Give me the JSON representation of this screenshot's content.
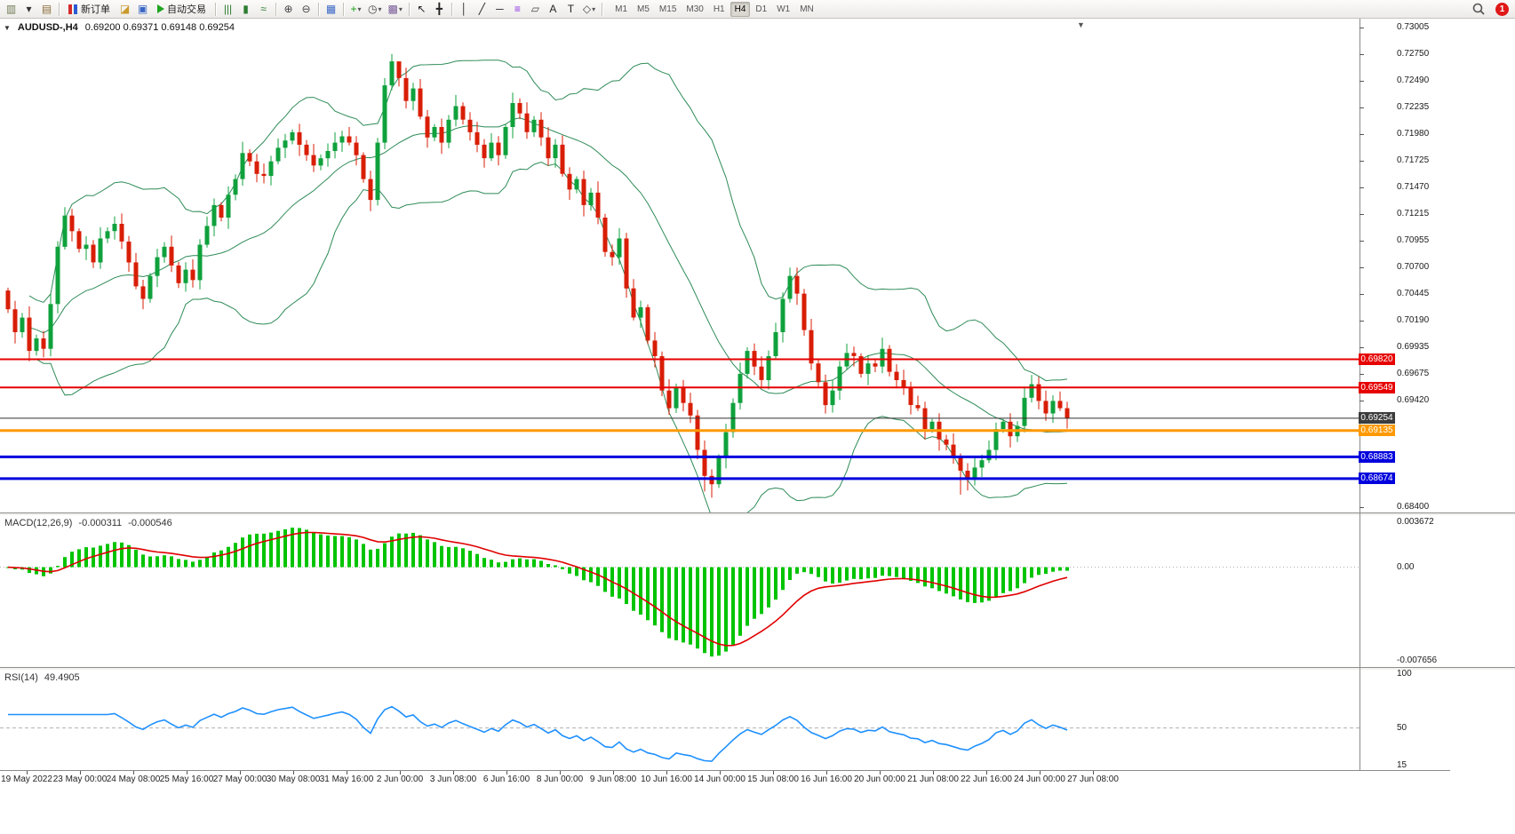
{
  "toolbar": {
    "items": [
      {
        "type": "icon",
        "name": "new-chart-button",
        "glyph": "▥",
        "color": "#6d7a52"
      },
      {
        "type": "icon",
        "name": "new-chart-dropdown-button",
        "glyph": "▾",
        "color": "#333"
      },
      {
        "type": "icon",
        "name": "profiles-button",
        "glyph": "▤",
        "color": "#8a6d3b"
      },
      {
        "type": "sep"
      },
      {
        "type": "button",
        "name": "new-order-button",
        "icon": "order",
        "label": "新订单"
      },
      {
        "type": "icon",
        "name": "market-watch-button",
        "glyph": "◪",
        "color": "#c99a2c"
      },
      {
        "type": "icon",
        "name": "navigator-button",
        "glyph": "▣",
        "color": "#3a66c6"
      },
      {
        "type": "button",
        "name": "autotrading-button",
        "icon": "play",
        "label": "自动交易"
      },
      {
        "type": "sep"
      },
      {
        "type": "icon",
        "name": "bar-chart-button",
        "glyph": "|||",
        "color": "#2e7d32"
      },
      {
        "type": "icon",
        "name": "candlestick-chart-button",
        "glyph": "▮",
        "color": "#2e7d32"
      },
      {
        "type": "icon",
        "name": "line-chart-button",
        "glyph": "≈",
        "color": "#2e7d32"
      },
      {
        "type": "sep"
      },
      {
        "type": "icon",
        "name": "zoom-in-button",
        "glyph": "⊕",
        "color": "#444"
      },
      {
        "type": "icon",
        "name": "zoom-out-button",
        "glyph": "⊖",
        "color": "#444"
      },
      {
        "type": "sep"
      },
      {
        "type": "icon",
        "name": "tile-windows-button",
        "glyph": "▦",
        "color": "#3a66c6"
      },
      {
        "type": "sep"
      },
      {
        "type": "icon",
        "name": "indicators-button",
        "glyph": "+",
        "color": "#13a113",
        "dropdown": true
      },
      {
        "type": "icon",
        "name": "periods-button",
        "glyph": "◷",
        "color": "#444",
        "dropdown": true
      },
      {
        "type": "icon",
        "name": "templates-button",
        "glyph": "▩",
        "color": "#7a5c99",
        "dropdown": true
      },
      {
        "type": "sep"
      },
      {
        "type": "icon",
        "name": "cursor-button",
        "glyph": "↖",
        "color": "#222"
      },
      {
        "type": "icon",
        "name": "crosshair-button",
        "glyph": "╋",
        "color": "#222"
      },
      {
        "type": "sep"
      },
      {
        "type": "icon",
        "name": "vertical-line-button",
        "glyph": "│",
        "color": "#222"
      },
      {
        "type": "icon",
        "name": "trendline-button",
        "glyph": "╱",
        "color": "#222"
      },
      {
        "type": "icon",
        "name": "horizontal-line-button",
        "glyph": "─",
        "color": "#222"
      },
      {
        "type": "icon",
        "name": "fibonacci-button",
        "glyph": "≡",
        "color": "#8a2be2"
      },
      {
        "type": "icon",
        "name": "shapes-button",
        "glyph": "▱",
        "color": "#444"
      },
      {
        "type": "icon",
        "name": "text-button",
        "glyph": "A",
        "color": "#222"
      },
      {
        "type": "icon",
        "name": "text-label-button",
        "glyph": "T",
        "color": "#222"
      },
      {
        "type": "icon",
        "name": "arrows-button",
        "glyph": "◇",
        "color": "#444",
        "dropdown": true
      },
      {
        "type": "sep"
      }
    ],
    "timeframes": [
      "M1",
      "M5",
      "M15",
      "M30",
      "H1",
      "H4",
      "D1",
      "W1",
      "MN"
    ],
    "active_timeframe": "H4",
    "notification_badge": "1"
  },
  "chart": {
    "symbol_period": "AUDUSD-,H4",
    "ohlc": "0.69200 0.69371 0.69148 0.69254"
  },
  "price_axis": {
    "ticks": [
      "0.73005",
      "0.72750",
      "0.72490",
      "0.72235",
      "0.71980",
      "0.71725",
      "0.71470",
      "0.71215",
      "0.70955",
      "0.70700",
      "0.70445",
      "0.70190",
      "0.69935",
      "0.69675",
      "0.69420",
      "0.68400"
    ]
  },
  "levels": [
    {
      "label": "0.69820",
      "price": 0.6982,
      "color": "#e60000",
      "width": 2
    },
    {
      "label": "0.69549",
      "price": 0.69549,
      "color": "#e60000",
      "width": 2
    },
    {
      "label": "0.69254",
      "price": 0.69254,
      "color": "#303030",
      "width": 1,
      "box": "#3c3c3c"
    },
    {
      "label": "0.69135",
      "price": 0.69135,
      "color": "#ff9900",
      "width": 3
    },
    {
      "label": "0.68883",
      "price": 0.68883,
      "color": "#0000dd",
      "width": 3
    },
    {
      "label": "0.68674",
      "price": 0.68674,
      "color": "#0000dd",
      "width": 3
    }
  ],
  "macd": {
    "title": "MACD(12,26,9)",
    "value_main": "-0.000311",
    "value_signal": "-0.000546",
    "axis": [
      {
        "label": "0.003672",
        "value": 0.003672
      },
      {
        "label": "0.00",
        "value": 0
      },
      {
        "label": "-0.007656",
        "value": -0.007656
      }
    ]
  },
  "rsi": {
    "title": "RSI(14)",
    "value": "49.4905",
    "axis": [
      {
        "label": "100",
        "value": 100
      },
      {
        "label": "50",
        "value": 50
      },
      {
        "label": "15",
        "value": 15
      }
    ]
  },
  "time_axis": [
    "19 May 2022",
    "23 May 00:00",
    "24 May 08:00",
    "25 May 16:00",
    "27 May 00:00",
    "30 May 08:00",
    "31 May 16:00",
    "2 Jun 00:00",
    "3 Jun 08:00",
    "6 Jun 16:00",
    "8 Jun 00:00",
    "9 Jun 08:00",
    "10 Jun 16:00",
    "14 Jun 00:00",
    "15 Jun 08:00",
    "16 Jun 16:00",
    "20 Jun 00:00",
    "21 Jun 08:00",
    "22 Jun 16:00",
    "24 Jun 00:00",
    "27 Jun 08:00"
  ],
  "colors": {
    "up": "#0fa13c",
    "down": "#d81e06",
    "bands": "#2e8b57",
    "macd_hist": "#00c400",
    "macd_signal": "#e00000",
    "rsi_line": "#1e90ff",
    "grid_dotted": "#aaaaaa"
  },
  "chart_data": {
    "type": "candlestick",
    "symbol": "AUDUSD",
    "timeframe": "H4",
    "axis_top": 0.73005,
    "axis_bottom": 0.684,
    "open_first": 0.7048,
    "closes": [
      0.703,
      0.7008,
      0.7022,
      0.699,
      0.7002,
      0.6992,
      0.7035,
      0.709,
      0.712,
      0.7105,
      0.7088,
      0.7092,
      0.7075,
      0.7098,
      0.7105,
      0.7112,
      0.7095,
      0.7075,
      0.7052,
      0.704,
      0.7062,
      0.708,
      0.709,
      0.7072,
      0.7055,
      0.7068,
      0.7058,
      0.7092,
      0.711,
      0.713,
      0.7118,
      0.714,
      0.7155,
      0.718,
      0.7172,
      0.716,
      0.7158,
      0.7172,
      0.7185,
      0.7192,
      0.72,
      0.7188,
      0.7178,
      0.7168,
      0.7175,
      0.7182,
      0.719,
      0.7196,
      0.719,
      0.7178,
      0.7155,
      0.7135,
      0.719,
      0.7245,
      0.7268,
      0.7252,
      0.723,
      0.7242,
      0.7215,
      0.7195,
      0.7205,
      0.719,
      0.7212,
      0.7225,
      0.7212,
      0.72,
      0.7188,
      0.7175,
      0.719,
      0.7178,
      0.7205,
      0.7228,
      0.7218,
      0.72,
      0.7212,
      0.7195,
      0.7175,
      0.7188,
      0.716,
      0.7145,
      0.7155,
      0.713,
      0.7142,
      0.7118,
      0.7085,
      0.708,
      0.7098,
      0.705,
      0.7022,
      0.7032,
      0.7,
      0.6985,
      0.6952,
      0.6935,
      0.6955,
      0.694,
      0.6928,
      0.6895,
      0.687,
      0.6862,
      0.6888,
      0.6912,
      0.694,
      0.6968,
      0.699,
      0.6975,
      0.6962,
      0.6985,
      0.7008,
      0.704,
      0.7062,
      0.7045,
      0.701,
      0.6978,
      0.696,
      0.6938,
      0.6952,
      0.6975,
      0.6988,
      0.6985,
      0.6968,
      0.6978,
      0.6975,
      0.6992,
      0.697,
      0.6962,
      0.6955,
      0.6938,
      0.6935,
      0.6915,
      0.6922,
      0.6905,
      0.69,
      0.6888,
      0.6875,
      0.6868,
      0.6878,
      0.6885,
      0.6895,
      0.6915,
      0.6922,
      0.6908,
      0.6918,
      0.6945,
      0.6958,
      0.6942,
      0.693,
      0.6942,
      0.6935,
      0.69254
    ],
    "wick_unit": 0.0009,
    "wick_upper": [
      0.3,
      0.9,
      0.5,
      1.2,
      0.4,
      0.8,
      1.1,
      0.6,
      1.0,
      0.7
    ],
    "wick_lower": [
      0.7,
      0.4,
      1.0,
      0.5,
      1.2,
      0.3,
      0.9,
      0.6,
      1.1,
      0.8
    ],
    "extremes": {
      "3": {
        "l": 0.698
      },
      "8": {
        "h": 0.7128
      },
      "53": {
        "h": 0.7252
      },
      "54": {
        "h": 0.7275
      },
      "55": {
        "h": 0.7262
      },
      "71": {
        "h": 0.7238
      },
      "98": {
        "l": 0.6855
      },
      "99": {
        "l": 0.6849
      },
      "110": {
        "h": 0.707
      },
      "134": {
        "l": 0.6852
      },
      "135": {
        "l": 0.6856
      },
      "144": {
        "h": 0.6967
      }
    },
    "bollinger": {
      "period": 20,
      "deviation": 2
    },
    "indicators": [
      {
        "type": "MACD",
        "params": [
          12,
          26,
          9
        ]
      },
      {
        "type": "RSI",
        "params": [
          14
        ]
      }
    ]
  }
}
